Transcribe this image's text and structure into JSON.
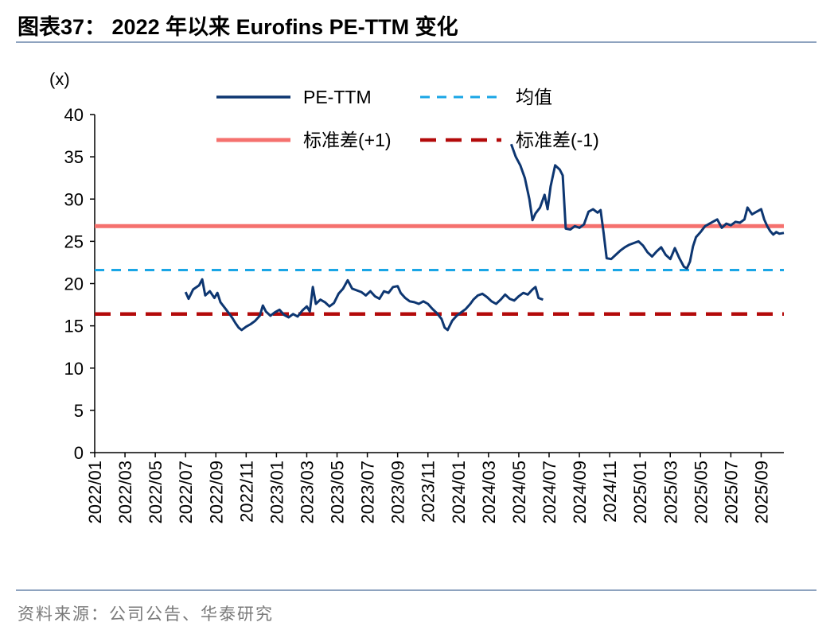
{
  "header": {
    "title": "图表37：  2022 年以来 Eurofins PE-TTM 变化"
  },
  "footer": {
    "source": "资料来源：公司公告、华泰研究"
  },
  "colors": {
    "pe": "#0d3671",
    "mean": "#1aa6e6",
    "plus1": "#f5716e",
    "minus1": "#b30a0a",
    "rule": "#8ea3bf"
  },
  "chart_data": {
    "type": "line",
    "title": "2022 年以来 Eurofins PE-TTM 变化",
    "ylabel": "(x)",
    "xlabel": "",
    "ylim": [
      0,
      40
    ],
    "yticks": [
      0,
      5,
      10,
      15,
      20,
      25,
      30,
      35,
      40
    ],
    "xlim": [
      "2022/01",
      "2025/10"
    ],
    "xtick_labels": [
      "2022/01",
      "2022/03",
      "2022/05",
      "2022/07",
      "2022/09",
      "2022/11",
      "2023/01",
      "2023/03",
      "2023/05",
      "2023/07",
      "2023/09",
      "2023/11",
      "2024/01",
      "2024/03",
      "2024/05",
      "2024/07",
      "2024/09",
      "2024/11",
      "2025/01",
      "2025/03",
      "2025/05",
      "2025/07",
      "2025/09"
    ],
    "legend": {
      "position": "top",
      "entries": [
        "PE-TTM",
        "均值",
        "标准差(+1)",
        "标准差(-1)"
      ]
    },
    "reference_lines": [
      {
        "name": "均值",
        "value": 21.6,
        "style": "dashed"
      },
      {
        "name": "标准差(+1)",
        "value": 26.8,
        "style": "solid"
      },
      {
        "name": "标准差(-1)",
        "value": 16.4,
        "style": "dashed"
      }
    ],
    "series": [
      {
        "name": "PE-TTM",
        "note": "x in months since 2022/01",
        "segments": [
          [
            [
              6.0,
              19.0
            ],
            [
              6.2,
              18.2
            ],
            [
              6.5,
              19.3
            ],
            [
              6.9,
              19.8
            ],
            [
              7.1,
              20.5
            ],
            [
              7.3,
              18.6
            ],
            [
              7.6,
              19.1
            ],
            [
              7.9,
              18.3
            ],
            [
              8.1,
              18.9
            ],
            [
              8.3,
              17.8
            ],
            [
              8.6,
              17.1
            ],
            [
              8.9,
              16.4
            ],
            [
              9.1,
              15.9
            ],
            [
              9.3,
              15.3
            ],
            [
              9.5,
              14.8
            ],
            [
              9.7,
              14.5
            ],
            [
              10.0,
              14.9
            ],
            [
              10.3,
              15.2
            ],
            [
              10.6,
              15.6
            ],
            [
              10.9,
              16.2
            ],
            [
              11.1,
              17.4
            ],
            [
              11.3,
              16.7
            ],
            [
              11.6,
              16.2
            ],
            [
              11.9,
              16.6
            ],
            [
              12.2,
              16.9
            ],
            [
              12.5,
              16.3
            ],
            [
              12.8,
              16.0
            ],
            [
              13.1,
              16.4
            ],
            [
              13.4,
              16.1
            ],
            [
              13.7,
              16.8
            ],
            [
              14.0,
              17.3
            ],
            [
              14.2,
              16.7
            ],
            [
              14.4,
              19.6
            ],
            [
              14.6,
              17.6
            ],
            [
              14.9,
              18.1
            ],
            [
              15.2,
              17.8
            ],
            [
              15.5,
              17.3
            ],
            [
              15.8,
              17.7
            ],
            [
              16.1,
              18.8
            ],
            [
              16.4,
              19.4
            ],
            [
              16.7,
              20.4
            ],
            [
              17.0,
              19.4
            ],
            [
              17.3,
              19.2
            ],
            [
              17.6,
              19.0
            ],
            [
              17.9,
              18.6
            ],
            [
              18.2,
              19.1
            ],
            [
              18.5,
              18.5
            ],
            [
              18.8,
              18.2
            ],
            [
              19.1,
              19.1
            ],
            [
              19.4,
              18.9
            ],
            [
              19.7,
              19.6
            ],
            [
              20.0,
              19.7
            ],
            [
              20.2,
              18.9
            ],
            [
              20.5,
              18.3
            ],
            [
              20.8,
              17.9
            ],
            [
              21.1,
              17.8
            ],
            [
              21.4,
              17.6
            ],
            [
              21.7,
              17.9
            ],
            [
              22.0,
              17.6
            ],
            [
              22.3,
              17.0
            ],
            [
              22.6,
              16.5
            ],
            [
              22.9,
              15.8
            ],
            [
              23.1,
              14.8
            ],
            [
              23.3,
              14.5
            ],
            [
              23.6,
              15.6
            ],
            [
              23.9,
              16.2
            ],
            [
              24.2,
              16.6
            ],
            [
              24.5,
              17.0
            ],
            [
              24.8,
              17.6
            ],
            [
              25.0,
              18.1
            ],
            [
              25.3,
              18.6
            ],
            [
              25.6,
              18.8
            ],
            [
              25.9,
              18.4
            ],
            [
              26.2,
              17.9
            ],
            [
              26.5,
              17.6
            ],
            [
              26.8,
              18.1
            ],
            [
              27.1,
              18.7
            ],
            [
              27.4,
              18.2
            ],
            [
              27.7,
              18.0
            ],
            [
              28.0,
              18.5
            ],
            [
              28.3,
              18.9
            ],
            [
              28.6,
              18.7
            ],
            [
              28.9,
              19.3
            ],
            [
              29.1,
              19.6
            ],
            [
              29.3,
              18.3
            ],
            [
              29.6,
              18.1
            ]
          ],
          [
            [
              27.5,
              36.5
            ],
            [
              27.8,
              35.0
            ],
            [
              28.1,
              34.0
            ],
            [
              28.4,
              32.5
            ],
            [
              28.7,
              30.0
            ],
            [
              28.9,
              27.5
            ],
            [
              29.1,
              28.3
            ],
            [
              29.4,
              29.0
            ],
            [
              29.7,
              30.5
            ],
            [
              29.9,
              28.8
            ],
            [
              30.1,
              31.5
            ],
            [
              30.4,
              34.0
            ],
            [
              30.7,
              33.5
            ],
            [
              30.9,
              32.8
            ],
            [
              31.1,
              26.5
            ],
            [
              31.4,
              26.4
            ],
            [
              31.7,
              26.8
            ],
            [
              32.0,
              26.6
            ],
            [
              32.3,
              27.0
            ],
            [
              32.6,
              28.5
            ],
            [
              32.9,
              28.8
            ],
            [
              33.2,
              28.4
            ],
            [
              33.4,
              28.7
            ],
            [
              33.6,
              26.0
            ],
            [
              33.8,
              23.0
            ],
            [
              34.1,
              22.9
            ],
            [
              34.4,
              23.4
            ],
            [
              34.7,
              23.9
            ],
            [
              35.0,
              24.3
            ],
            [
              35.3,
              24.6
            ],
            [
              35.6,
              24.8
            ],
            [
              35.9,
              25.0
            ],
            [
              36.2,
              24.5
            ],
            [
              36.5,
              23.7
            ],
            [
              36.8,
              23.2
            ],
            [
              37.1,
              23.8
            ],
            [
              37.4,
              24.3
            ],
            [
              37.7,
              23.4
            ],
            [
              38.0,
              22.9
            ],
            [
              38.3,
              24.2
            ],
            [
              38.6,
              23.0
            ],
            [
              38.9,
              22.0
            ],
            [
              39.1,
              21.8
            ],
            [
              39.3,
              22.6
            ],
            [
              39.5,
              24.4
            ],
            [
              39.7,
              25.5
            ],
            [
              40.0,
              26.1
            ],
            [
              40.3,
              26.8
            ],
            [
              40.6,
              27.1
            ],
            [
              40.9,
              27.4
            ],
            [
              41.1,
              27.6
            ],
            [
              41.4,
              26.6
            ],
            [
              41.7,
              27.1
            ],
            [
              42.0,
              26.9
            ],
            [
              42.3,
              27.3
            ],
            [
              42.6,
              27.2
            ],
            [
              42.9,
              27.6
            ],
            [
              43.1,
              29.0
            ],
            [
              43.4,
              28.2
            ],
            [
              43.7,
              28.5
            ],
            [
              44.0,
              28.8
            ],
            [
              44.2,
              27.6
            ],
            [
              44.4,
              26.8
            ],
            [
              44.6,
              26.2
            ],
            [
              44.8,
              25.8
            ],
            [
              45.0,
              26.1
            ],
            [
              45.2,
              25.9
            ],
            [
              45.5,
              26.0
            ]
          ]
        ]
      }
    ]
  }
}
